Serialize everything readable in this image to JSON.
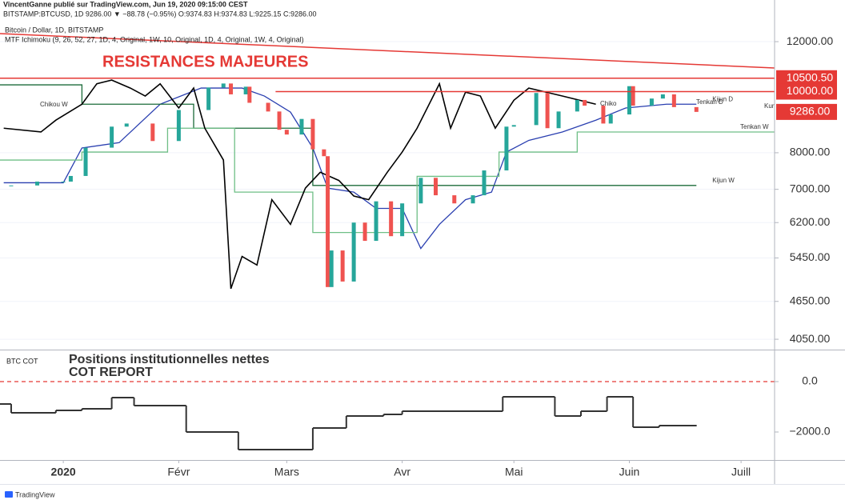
{
  "header": {
    "author_line": "VincentGanne publié sur TradingView.com, Jun 19, 2020 09:15:00 CEST",
    "symbol_line": "BITSTAMP:BTCUSD, 1D 9286.00 ▼ −88.78 (−0.95%) O:9374.83 H:9374.83 L:9225.15 C:9286.00"
  },
  "footer": "TradingView",
  "chart_data": [
    {
      "type": "candlestick",
      "title": "Bitcoin / Dollar, 1D, BITSTAMP",
      "subtitle": "MTF Ichimoku (9, 26, 52, 27, 1D, 4, Original, 1W, 10, Original, 1D, 4, Original, 1W, 4, Original)",
      "annotation": "RESISTANCES MAJEURES",
      "annotation_color": "#e53935",
      "log_scale": true,
      "xlim": [
        -17,
        191
      ],
      "ylim": [
        3900,
        13970
      ],
      "yticks": [
        {
          "value": 12000,
          "label": "12000.00"
        },
        {
          "value": 8000,
          "label": "8000.00"
        },
        {
          "value": 7000,
          "label": "7000.00"
        },
        {
          "value": 6200,
          "label": "6200.00"
        },
        {
          "value": 5450,
          "label": "5450.00"
        },
        {
          "value": 4650,
          "label": "4650.00"
        },
        {
          "value": 4050,
          "label": "4050.00"
        }
      ],
      "price_labels": [
        {
          "value": 10500.5,
          "label": "10500.50"
        },
        {
          "value": 10000,
          "label": "10000.00"
        },
        {
          "value": 9286,
          "label": "9286.00"
        }
      ],
      "price_label_color": "#e53935",
      "up_color": "#26a69a",
      "down_color": "#ef5350",
      "x": [
        -14,
        -7,
        0,
        2,
        6,
        13,
        17,
        24,
        31,
        39,
        43,
        45,
        49,
        50,
        55,
        58,
        60,
        64,
        67,
        70,
        71,
        72,
        75,
        78,
        81,
        84,
        88,
        91,
        96,
        100,
        105,
        110,
        113,
        119,
        121,
        127,
        130,
        133,
        138,
        140,
        145,
        147,
        152,
        153,
        158,
        161,
        164,
        170
      ],
      "values": [
        7100,
        7200,
        7200,
        7350,
        8150,
        8800,
        8900,
        8350,
        9350,
        10150,
        10300,
        9900,
        10180,
        9600,
        9300,
        8700,
        8550,
        9050,
        8100,
        7900,
        4900,
        5600,
        5000,
        6200,
        5800,
        6700,
        5900,
        6650,
        7300,
        6850,
        6650,
        6850,
        7500,
        8800,
        8850,
        9950,
        8750,
        9300,
        9700,
        9500,
        8900,
        9200,
        10200,
        9500,
        9750,
        9900,
        9450,
        9286
      ],
      "chikou": {
        "color": "#000000",
        "x": [
          -16,
          -6,
          -2,
          5,
          9,
          13,
          18,
          22,
          26,
          31,
          35,
          38,
          43,
          45,
          48,
          52,
          56,
          61,
          65,
          69,
          74,
          78,
          82,
          87,
          91,
          95,
          101,
          104,
          108,
          112,
          116,
          121,
          125,
          134,
          143
        ],
        "values": [
          8750,
          8630,
          9010,
          9550,
          10290,
          10430,
          10130,
          9840,
          10290,
          9420,
          10130,
          8750,
          7790,
          4870,
          5480,
          5310,
          6740,
          6160,
          7030,
          7450,
          7230,
          6830,
          6740,
          7450,
          8020,
          8750,
          10290,
          8750,
          9980,
          9840,
          8750,
          9690,
          10130,
          9840,
          9550
        ]
      },
      "series": [
        {
          "name": "Kijun D",
          "color": "#2a3fb0",
          "x": [
            -16,
            0,
            5,
            15,
            26,
            37,
            48,
            54,
            61,
            67,
            71,
            78,
            84,
            91,
            96,
            101,
            108,
            115,
            119,
            125,
            134,
            143,
            151,
            162,
            170
          ],
          "values": [
            7170,
            7170,
            8140,
            8300,
            9550,
            10130,
            10130,
            9840,
            9280,
            8140,
            7030,
            6930,
            6530,
            6530,
            5640,
            6160,
            6740,
            6930,
            8020,
            8370,
            8630,
            9010,
            9420,
            9550,
            9550
          ]
        },
        {
          "name": "Kijun W",
          "color": "#1b6b3a",
          "x": [
            -17,
            5,
            5,
            35,
            35,
            67,
            67,
            170
          ],
          "values": [
            10250,
            10250,
            9550,
            9550,
            8750,
            8750,
            7100,
            7100
          ]
        },
        {
          "name": "Tenkan W",
          "color": "#6fbf86",
          "x": [
            -17,
            5,
            5,
            28,
            28,
            46,
            46,
            67,
            67,
            95,
            95,
            117,
            117,
            138,
            138,
            191
          ],
          "values": [
            7790,
            7790,
            8020,
            8020,
            8750,
            8750,
            6930,
            6930,
            5980,
            5980,
            7340,
            7340,
            8020,
            8020,
            8630,
            8630
          ]
        }
      ],
      "line_labels": [
        "Chikou W",
        "Chiko",
        "Tenkan D",
        "Kun"
      ],
      "resistance_lines": [
        {
          "x": [
            -17,
            191
          ],
          "value": 10500.5
        },
        {
          "x": [
            57,
            191
          ],
          "value": 10000
        }
      ],
      "trendline": {
        "x": [
          -17,
          191
        ],
        "values": [
          12360,
          10900
        ]
      },
      "line_color": "#e53935"
    },
    {
      "type": "line",
      "step": true,
      "title": "BTC COT",
      "annotation": [
        "Positions institutionnelles nettes",
        "COT REPORT"
      ],
      "color": "#333333",
      "zero_line_color": "#e53935",
      "xlim": [
        -17,
        191
      ],
      "ylim": [
        -3111,
        1175
      ],
      "yticks": [
        {
          "value": 0,
          "label": "0.0"
        },
        {
          "value": -2000,
          "label": "−2000.0"
        }
      ],
      "xticks": [
        {
          "value": 0,
          "label": "2020"
        },
        {
          "value": 31,
          "label": "Févr"
        },
        {
          "value": 60,
          "label": "Mars"
        },
        {
          "value": 91,
          "label": "Avr"
        },
        {
          "value": 121,
          "label": "Mai"
        },
        {
          "value": 152,
          "label": "Juin"
        },
        {
          "value": 182,
          "label": "Juill"
        }
      ],
      "x": [
        -17,
        -14,
        -2,
        5,
        13,
        19,
        33,
        47,
        67,
        76,
        86,
        91,
        118,
        132,
        139,
        146,
        153,
        160,
        170
      ],
      "values": [
        -889,
        -1238,
        -1143,
        -1079,
        -635,
        -952,
        -2000,
        -2698,
        -1841,
        -1365,
        -1302,
        -1175,
        -603,
        -1365,
        -1175,
        -603,
        -1810,
        -1746,
        -1746
      ]
    }
  ]
}
